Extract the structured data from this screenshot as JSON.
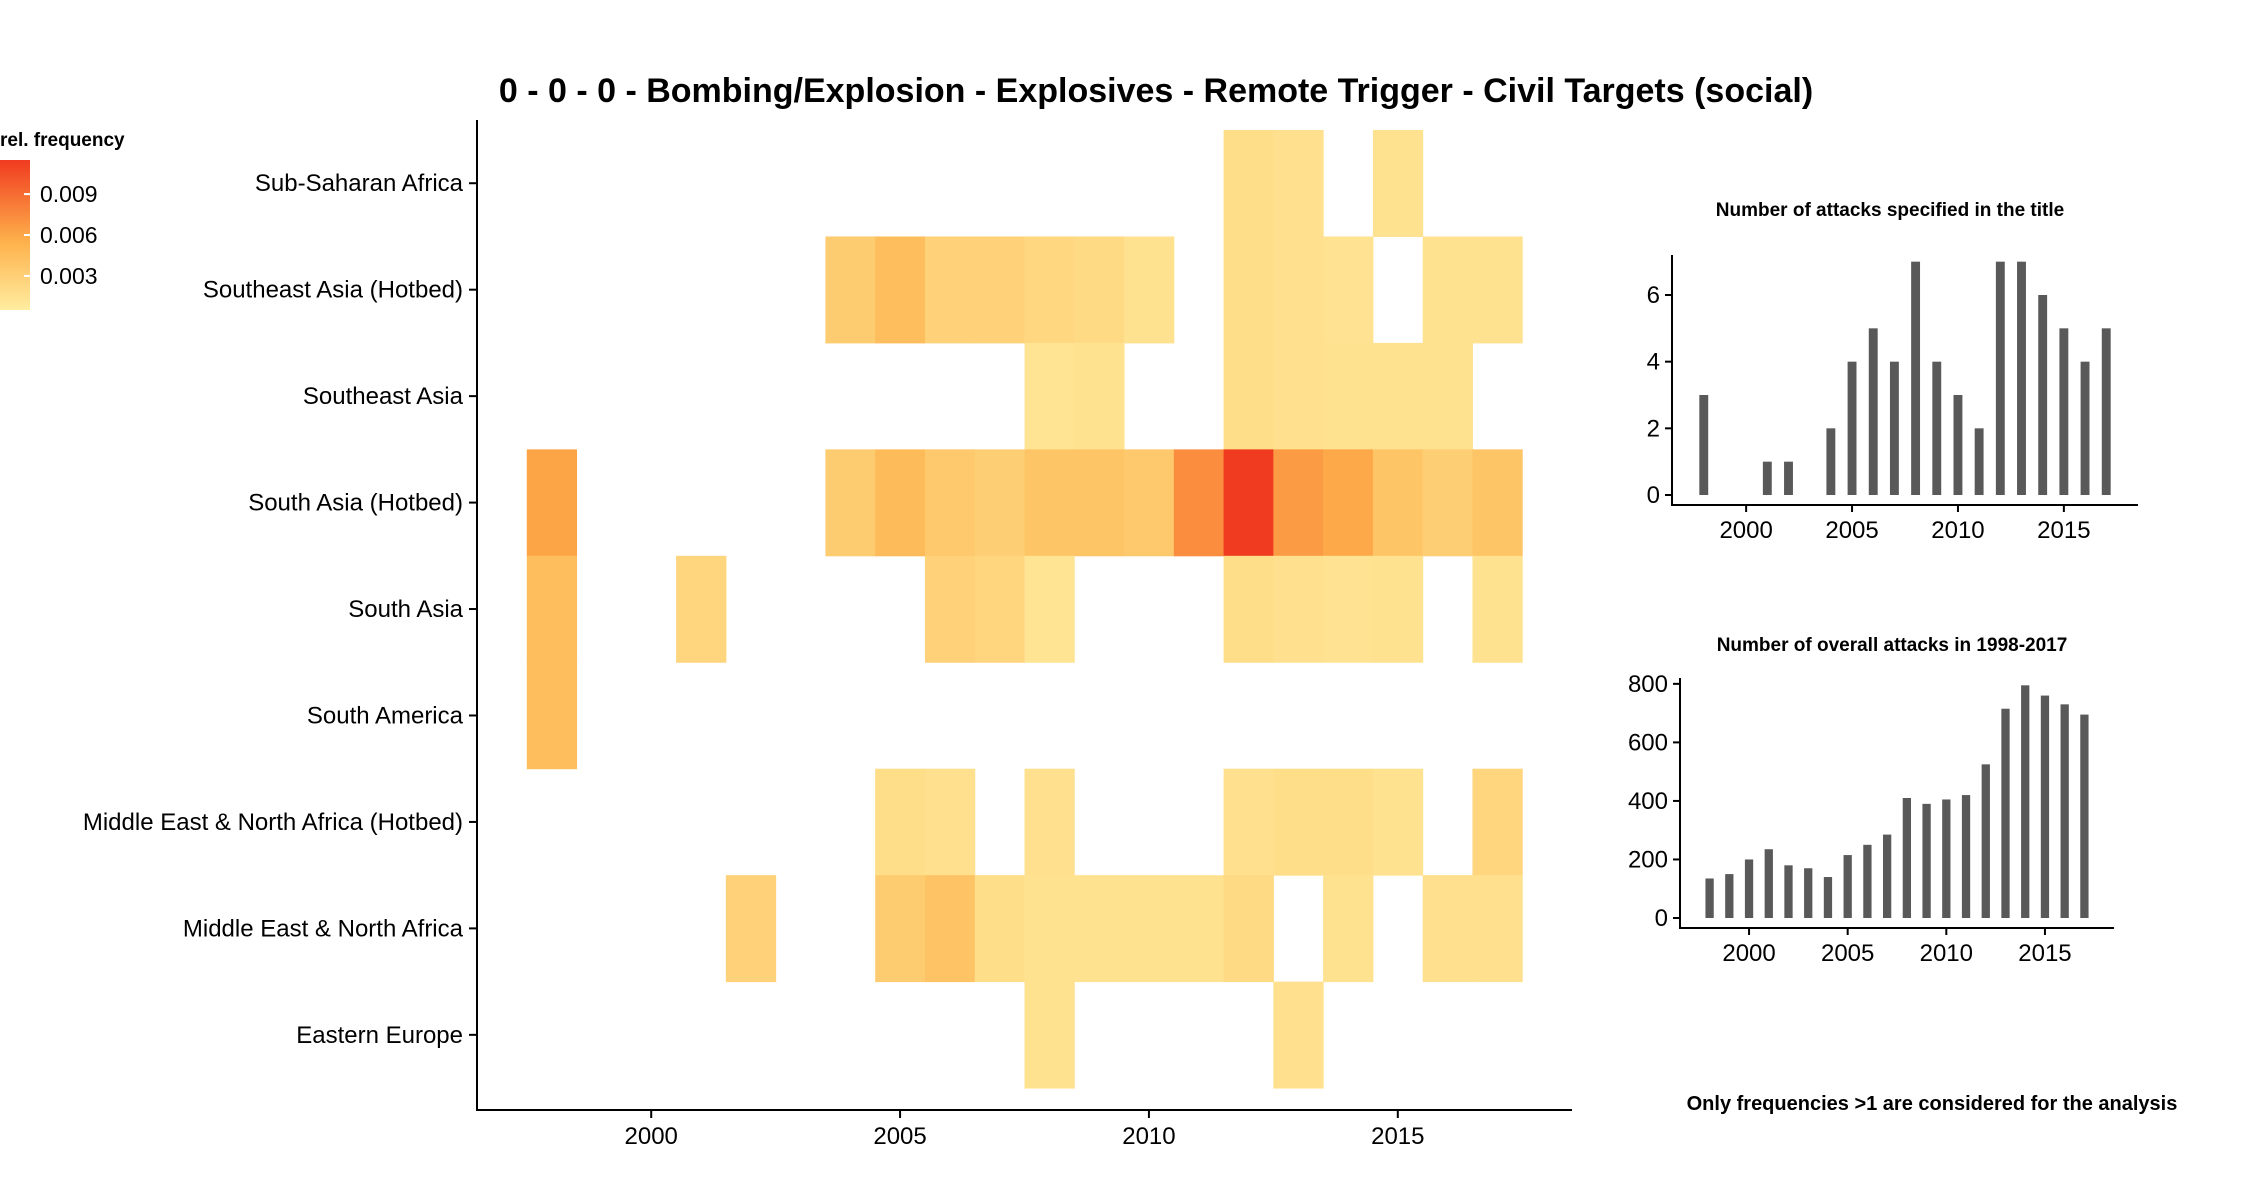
{
  "chart_data": [
    {
      "type": "heatmap",
      "title": "0 - 0 - 0 - Bombing/Explosion - Explosives - Remote Trigger - Civil Targets (social)",
      "x": [
        1998,
        1999,
        2000,
        2001,
        2002,
        2003,
        2004,
        2005,
        2006,
        2007,
        2008,
        2009,
        2010,
        2011,
        2012,
        2013,
        2014,
        2015,
        2016,
        2017
      ],
      "x_ticks": [
        "2000",
        "2005",
        "2010",
        "2015"
      ],
      "xlim": [
        1996.5,
        2018.5
      ],
      "rows": [
        "Sub-Saharan Africa",
        "Southeast Asia (Hotbed)",
        "Southeast Asia",
        "South Asia (Hotbed)",
        "South Asia",
        "South America",
        "Middle East & North Africa (Hotbed)",
        "Middle East & North Africa",
        "Eastern Europe"
      ],
      "cells": [
        {
          "row": 0,
          "x": 2012,
          "value": 0.0015
        },
        {
          "row": 0,
          "x": 2013,
          "value": 0.0013
        },
        {
          "row": 0,
          "x": 2015,
          "value": 0.0012
        },
        {
          "row": 1,
          "x": 2004,
          "value": 0.003
        },
        {
          "row": 1,
          "x": 2005,
          "value": 0.0042
        },
        {
          "row": 1,
          "x": 2006,
          "value": 0.0025
        },
        {
          "row": 1,
          "x": 2007,
          "value": 0.0025
        },
        {
          "row": 1,
          "x": 2008,
          "value": 0.002
        },
        {
          "row": 1,
          "x": 2009,
          "value": 0.0018
        },
        {
          "row": 1,
          "x": 2010,
          "value": 0.0012
        },
        {
          "row": 1,
          "x": 2012,
          "value": 0.0015
        },
        {
          "row": 1,
          "x": 2013,
          "value": 0.0013
        },
        {
          "row": 1,
          "x": 2014,
          "value": 0.0011
        },
        {
          "row": 1,
          "x": 2016,
          "value": 0.0012
        },
        {
          "row": 1,
          "x": 2017,
          "value": 0.0012
        },
        {
          "row": 2,
          "x": 2008,
          "value": 0.001
        },
        {
          "row": 2,
          "x": 2009,
          "value": 0.0012
        },
        {
          "row": 2,
          "x": 2012,
          "value": 0.0015
        },
        {
          "row": 2,
          "x": 2013,
          "value": 0.0013
        },
        {
          "row": 2,
          "x": 2014,
          "value": 0.0012
        },
        {
          "row": 2,
          "x": 2015,
          "value": 0.0012
        },
        {
          "row": 2,
          "x": 2016,
          "value": 0.0012
        },
        {
          "row": 3,
          "x": 1998,
          "value": 0.006
        },
        {
          "row": 3,
          "x": 2004,
          "value": 0.003
        },
        {
          "row": 3,
          "x": 2005,
          "value": 0.0045
        },
        {
          "row": 3,
          "x": 2006,
          "value": 0.0032
        },
        {
          "row": 3,
          "x": 2007,
          "value": 0.0028
        },
        {
          "row": 3,
          "x": 2008,
          "value": 0.0036
        },
        {
          "row": 3,
          "x": 2009,
          "value": 0.0036
        },
        {
          "row": 3,
          "x": 2010,
          "value": 0.0032
        },
        {
          "row": 3,
          "x": 2011,
          "value": 0.0072
        },
        {
          "row": 3,
          "x": 2012,
          "value": 0.0115
        },
        {
          "row": 3,
          "x": 2013,
          "value": 0.0065
        },
        {
          "row": 3,
          "x": 2014,
          "value": 0.0058
        },
        {
          "row": 3,
          "x": 2015,
          "value": 0.0036
        },
        {
          "row": 3,
          "x": 2016,
          "value": 0.0028
        },
        {
          "row": 3,
          "x": 2017,
          "value": 0.0036
        },
        {
          "row": 4,
          "x": 1998,
          "value": 0.0042
        },
        {
          "row": 4,
          "x": 2001,
          "value": 0.0022
        },
        {
          "row": 4,
          "x": 2006,
          "value": 0.0025
        },
        {
          "row": 4,
          "x": 2007,
          "value": 0.0022
        },
        {
          "row": 4,
          "x": 2008,
          "value": 0.001
        },
        {
          "row": 4,
          "x": 2012,
          "value": 0.0015
        },
        {
          "row": 4,
          "x": 2013,
          "value": 0.0013
        },
        {
          "row": 4,
          "x": 2014,
          "value": 0.0011
        },
        {
          "row": 4,
          "x": 2015,
          "value": 0.0012
        },
        {
          "row": 4,
          "x": 2017,
          "value": 0.0012
        },
        {
          "row": 5,
          "x": 1998,
          "value": 0.0042
        },
        {
          "row": 6,
          "x": 2005,
          "value": 0.0015
        },
        {
          "row": 6,
          "x": 2006,
          "value": 0.0013
        },
        {
          "row": 6,
          "x": 2008,
          "value": 0.0013
        },
        {
          "row": 6,
          "x": 2012,
          "value": 0.0013
        },
        {
          "row": 6,
          "x": 2013,
          "value": 0.0015
        },
        {
          "row": 6,
          "x": 2014,
          "value": 0.0015
        },
        {
          "row": 6,
          "x": 2015,
          "value": 0.0012
        },
        {
          "row": 6,
          "x": 2017,
          "value": 0.0022
        },
        {
          "row": 7,
          "x": 2002,
          "value": 0.0025
        },
        {
          "row": 7,
          "x": 2005,
          "value": 0.003
        },
        {
          "row": 7,
          "x": 2006,
          "value": 0.0038
        },
        {
          "row": 7,
          "x": 2007,
          "value": 0.0015
        },
        {
          "row": 7,
          "x": 2008,
          "value": 0.0012
        },
        {
          "row": 7,
          "x": 2009,
          "value": 0.0012
        },
        {
          "row": 7,
          "x": 2010,
          "value": 0.0012
        },
        {
          "row": 7,
          "x": 2011,
          "value": 0.0012
        },
        {
          "row": 7,
          "x": 2012,
          "value": 0.0018
        },
        {
          "row": 7,
          "x": 2014,
          "value": 0.0012
        },
        {
          "row": 7,
          "x": 2016,
          "value": 0.0013
        },
        {
          "row": 7,
          "x": 2017,
          "value": 0.0013
        },
        {
          "row": 8,
          "x": 2008,
          "value": 0.0012
        },
        {
          "row": 8,
          "x": 2013,
          "value": 0.0013
        }
      ],
      "legend": {
        "title": "rel. frequency",
        "ticks": [
          0.003,
          0.006,
          0.009
        ],
        "tick_labels": [
          "0.003",
          "0.006",
          "0.009"
        ],
        "range": [
          0.0005,
          0.0115
        ],
        "colors": [
          "#ffeda0",
          "#feb24c",
          "#f03b20"
        ],
        "position": "top-left"
      },
      "cell_colors": [
        "#ffeda0",
        "#feb24c",
        "#f03b20"
      ]
    },
    {
      "type": "bar",
      "title": "Number of attacks specified in the title",
      "x": [
        1998,
        2001,
        2002,
        2004,
        2005,
        2006,
        2007,
        2008,
        2009,
        2010,
        2011,
        2012,
        2013,
        2014,
        2015,
        2016,
        2017
      ],
      "values": [
        3,
        1,
        1,
        2,
        4,
        5,
        4,
        7,
        4,
        3,
        2,
        7,
        7,
        6,
        5,
        4,
        5
      ],
      "x_ticks": [
        "2000",
        "2005",
        "2010",
        "2015"
      ],
      "y_ticks": [
        "0",
        "2",
        "4",
        "6"
      ],
      "xlim": [
        1996.5,
        2018.5
      ],
      "ylim": [
        0,
        7.2
      ],
      "bar_color": "#595959"
    },
    {
      "type": "bar",
      "title": "Number of overall attacks in 1998-2017",
      "x": [
        1998,
        1999,
        2000,
        2001,
        2002,
        2003,
        2004,
        2005,
        2006,
        2007,
        2008,
        2009,
        2010,
        2011,
        2012,
        2013,
        2014,
        2015,
        2016,
        2017
      ],
      "values": [
        135,
        150,
        200,
        235,
        180,
        170,
        140,
        215,
        250,
        285,
        410,
        390,
        405,
        420,
        525,
        715,
        795,
        760,
        730,
        695
      ],
      "x_ticks": [
        "2000",
        "2005",
        "2010",
        "2015"
      ],
      "y_ticks": [
        "0",
        "200",
        "400",
        "600",
        "800"
      ],
      "xlim": [
        1996.5,
        2018.5
      ],
      "ylim": [
        0,
        820
      ],
      "bar_color": "#595959"
    }
  ],
  "note": "Only frequencies >1 are considered for the analysis"
}
